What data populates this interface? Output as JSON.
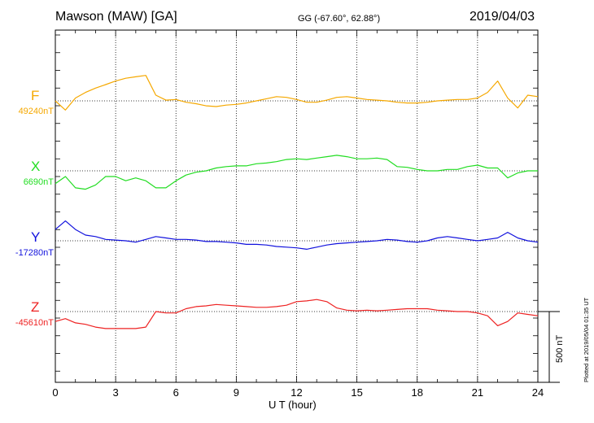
{
  "header": {
    "station": "Mawson (MAW)  [GA]",
    "coords": "GG (-67.60°,  62.88°)",
    "date": "2019/04/03"
  },
  "footer": {
    "xlabel": "U T (hour)",
    "scale_bar_label": "500 nT",
    "plotted_note": "Plotted at 2019/05/04 01:35 UT"
  },
  "chart_data": {
    "type": "line",
    "title": "Mawson (MAW)  [GA]",
    "xlabel": "U T (hour)",
    "ylabel": "",
    "xlim": [
      0,
      24
    ],
    "xticks": [
      0,
      3,
      6,
      9,
      12,
      15,
      18,
      21,
      24
    ],
    "x_tick_labels": [
      "0",
      "3",
      "6",
      "9",
      "12",
      "15",
      "18",
      "21",
      "24"
    ],
    "grid": true,
    "scale_bar_nT": 500,
    "x": [
      0,
      0.5,
      1,
      1.5,
      2,
      2.5,
      3,
      3.5,
      4,
      4.5,
      5,
      5.5,
      6,
      6.5,
      7,
      7.5,
      8,
      8.5,
      9,
      9.5,
      10,
      10.5,
      11,
      11.5,
      12,
      12.5,
      13,
      13.5,
      14,
      14.5,
      15,
      15.5,
      16,
      16.5,
      17,
      17.5,
      18,
      18.5,
      19,
      19.5,
      20,
      20.5,
      21,
      21.5,
      22,
      22.5,
      23,
      23.5,
      24
    ],
    "series": [
      {
        "name": "F",
        "baseline_label": "49240nT",
        "color": "#f5a800",
        "values": [
          49240,
          49175,
          49260,
          49300,
          49330,
          49355,
          49380,
          49400,
          49410,
          49420,
          49280,
          49245,
          49250,
          49230,
          49220,
          49205,
          49200,
          49210,
          49215,
          49225,
          49240,
          49255,
          49270,
          49265,
          49250,
          49230,
          49230,
          49245,
          49265,
          49270,
          49260,
          49250,
          49245,
          49240,
          49230,
          49225,
          49225,
          49230,
          49240,
          49245,
          49250,
          49250,
          49260,
          49300,
          49380,
          49260,
          49190,
          49280,
          49270
        ]
      },
      {
        "name": "X",
        "baseline_label": "6690nT",
        "color": "#22dd22",
        "values": [
          6600,
          6650,
          6570,
          6560,
          6590,
          6650,
          6650,
          6620,
          6640,
          6620,
          6570,
          6570,
          6620,
          6660,
          6680,
          6690,
          6710,
          6720,
          6725,
          6725,
          6740,
          6745,
          6755,
          6770,
          6775,
          6770,
          6780,
          6790,
          6800,
          6790,
          6775,
          6775,
          6780,
          6770,
          6720,
          6715,
          6700,
          6690,
          6690,
          6700,
          6700,
          6720,
          6730,
          6710,
          6710,
          6640,
          6675,
          6690,
          6690
        ]
      },
      {
        "name": "Y",
        "baseline_label": "-17280nT",
        "color": "#1111dd",
        "values": [
          -17200,
          -17140,
          -17200,
          -17240,
          -17250,
          -17270,
          -17275,
          -17280,
          -17290,
          -17270,
          -17250,
          -17260,
          -17270,
          -17270,
          -17275,
          -17285,
          -17285,
          -17290,
          -17295,
          -17305,
          -17305,
          -17310,
          -17320,
          -17325,
          -17330,
          -17340,
          -17325,
          -17310,
          -17300,
          -17295,
          -17290,
          -17285,
          -17280,
          -17270,
          -17275,
          -17285,
          -17290,
          -17280,
          -17260,
          -17250,
          -17260,
          -17270,
          -17280,
          -17270,
          -17260,
          -17220,
          -17260,
          -17280,
          -17290
        ]
      },
      {
        "name": "Z",
        "baseline_label": "-45610nT",
        "color": "#ee2222",
        "values": [
          -45680,
          -45660,
          -45690,
          -45700,
          -45720,
          -45730,
          -45730,
          -45730,
          -45730,
          -45720,
          -45610,
          -45620,
          -45620,
          -45590,
          -45575,
          -45570,
          -45560,
          -45565,
          -45570,
          -45575,
          -45580,
          -45580,
          -45575,
          -45565,
          -45540,
          -45535,
          -45525,
          -45540,
          -45585,
          -45600,
          -45605,
          -45600,
          -45605,
          -45600,
          -45595,
          -45590,
          -45590,
          -45590,
          -45600,
          -45605,
          -45610,
          -45610,
          -45620,
          -45640,
          -45710,
          -45680,
          -45620,
          -45630,
          -45640
        ]
      }
    ]
  }
}
